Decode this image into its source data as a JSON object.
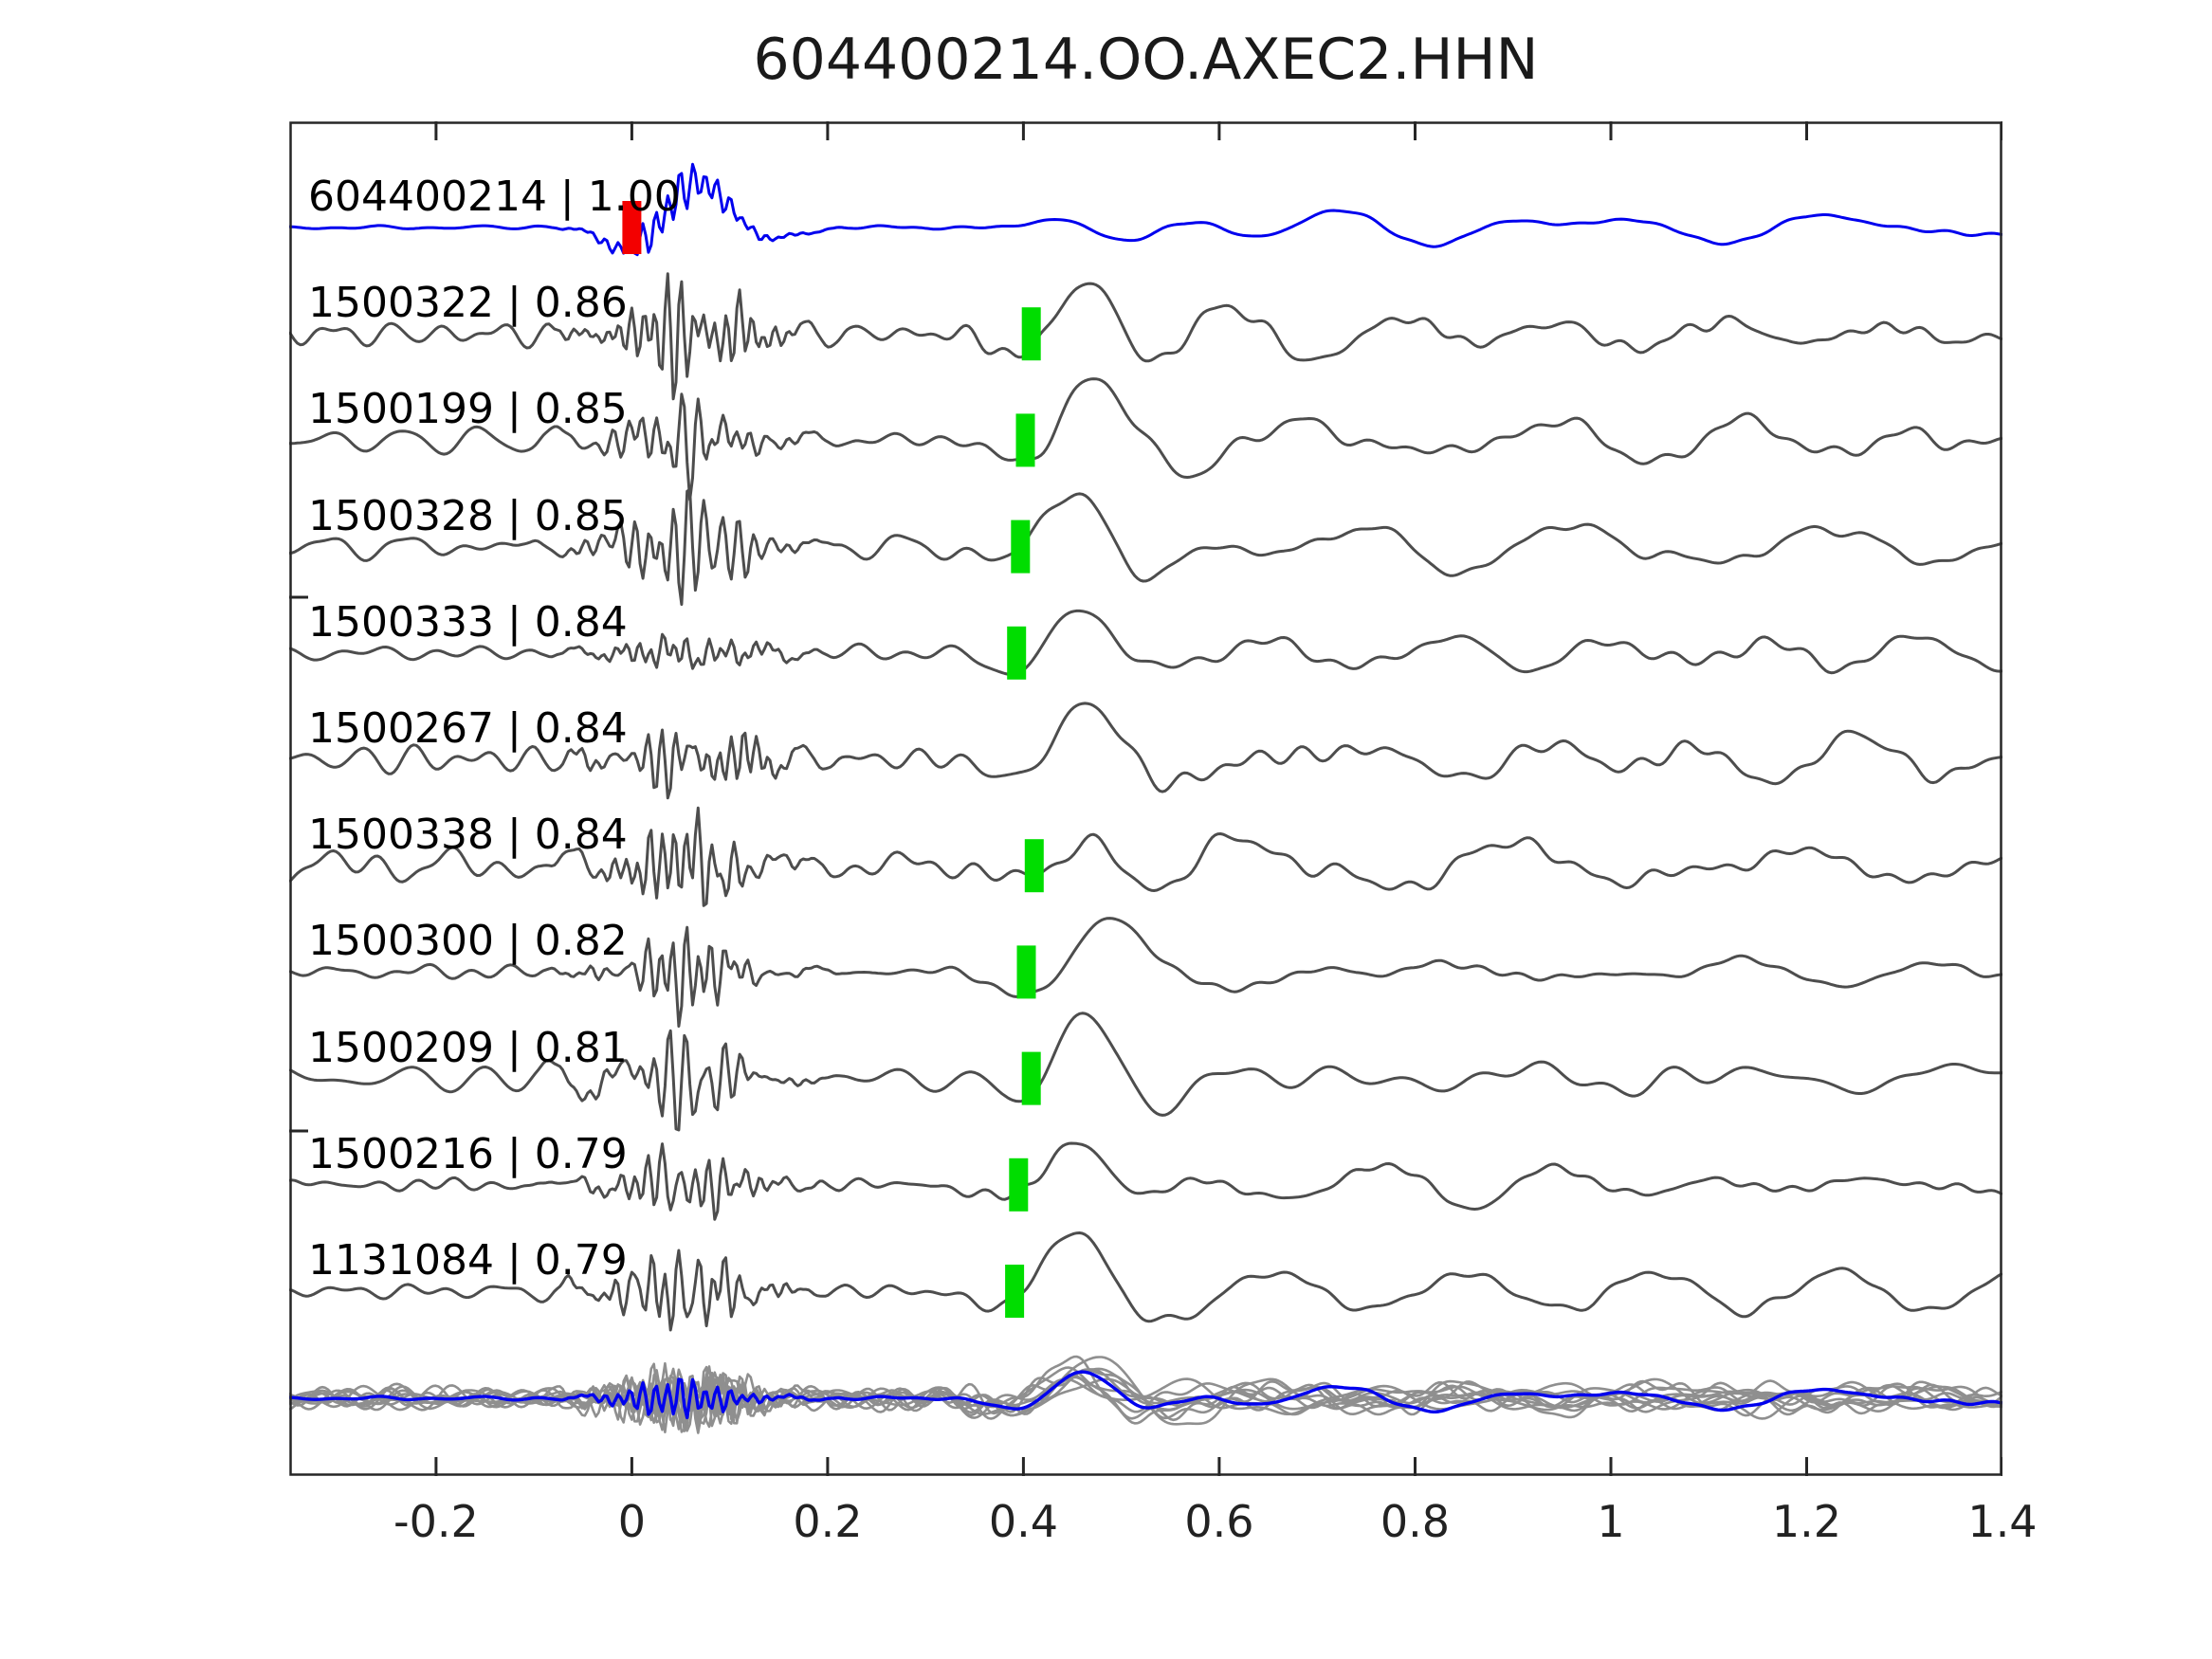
{
  "title": "604400214.OO.AXEC2.HHN",
  "chart_data": {
    "type": "line",
    "title": "604400214.OO.AXEC2.HHN",
    "subtitle": "",
    "xlabel": "",
    "ylabel": "",
    "xlim": [
      -0.35,
      1.4
    ],
    "grid": false,
    "legend": "none",
    "x_ticks": [
      {
        "value": -0.2,
        "label": "-0.2"
      },
      {
        "value": 0,
        "label": "0"
      },
      {
        "value": 0.2,
        "label": "0.2"
      },
      {
        "value": 0.4,
        "label": "0.4"
      },
      {
        "value": 0.6,
        "label": "0.6"
      },
      {
        "value": 0.8,
        "label": "0.8"
      },
      {
        "value": 1,
        "label": "1"
      },
      {
        "value": 1.2,
        "label": "1.2"
      },
      {
        "value": 1.4,
        "label": "1.4"
      }
    ],
    "colors": {
      "template_trace": "#0000ee",
      "detection_trace": "#4d4d4d",
      "overlay_gray": "#8f8f8f",
      "pick_marker_green": "#00dd00",
      "template_marker_red": "#f30000",
      "axis": "#262626",
      "text": "#000000"
    },
    "traces": [
      {
        "label": "604400214 | 1.00",
        "id": "604400214",
        "cc": 1.0,
        "color": "#0000ee",
        "marker_x": 0.0,
        "marker_color": "#f30000"
      },
      {
        "label": "1500322 | 0.86",
        "id": "1500322",
        "cc": 0.86,
        "color": "#4d4d4d",
        "marker_x": 0.408,
        "marker_color": "#00dd00"
      },
      {
        "label": "1500199 | 0.85",
        "id": "1500199",
        "cc": 0.85,
        "color": "#4d4d4d",
        "marker_x": 0.402,
        "marker_color": "#00dd00"
      },
      {
        "label": "1500328 | 0.85",
        "id": "1500328",
        "cc": 0.85,
        "color": "#4d4d4d",
        "marker_x": 0.397,
        "marker_color": "#00dd00"
      },
      {
        "label": "1500333 | 0.84",
        "id": "1500333",
        "cc": 0.84,
        "color": "#4d4d4d",
        "marker_x": 0.393,
        "marker_color": "#00dd00"
      },
      {
        "label": "1500267 | 0.84",
        "id": "1500267",
        "cc": 0.84,
        "color": "#4d4d4d",
        "marker_x": null,
        "marker_color": null
      },
      {
        "label": "1500338 | 0.84",
        "id": "1500338",
        "cc": 0.84,
        "color": "#4d4d4d",
        "marker_x": 0.411,
        "marker_color": "#00dd00"
      },
      {
        "label": "1500300 | 0.82",
        "id": "1500300",
        "cc": 0.82,
        "color": "#4d4d4d",
        "marker_x": 0.403,
        "marker_color": "#00dd00"
      },
      {
        "label": "1500209 | 0.81",
        "id": "1500209",
        "cc": 0.81,
        "color": "#4d4d4d",
        "marker_x": 0.408,
        "marker_color": "#00dd00"
      },
      {
        "label": "1500216 | 0.79",
        "id": "1500216",
        "cc": 0.79,
        "color": "#4d4d4d",
        "marker_x": 0.395,
        "marker_color": "#00dd00"
      },
      {
        "label": "1131084 | 0.79",
        "id": "1131084",
        "cc": 0.79,
        "color": "#4d4d4d",
        "marker_x": 0.391,
        "marker_color": "#00dd00"
      }
    ],
    "overlay_row": {
      "description": "All detection waveforms overlaid in gray with template waveform in blue",
      "gray_trace_count": 10,
      "gray_color": "#8f8f8f",
      "template_color": "#0000ee"
    }
  }
}
